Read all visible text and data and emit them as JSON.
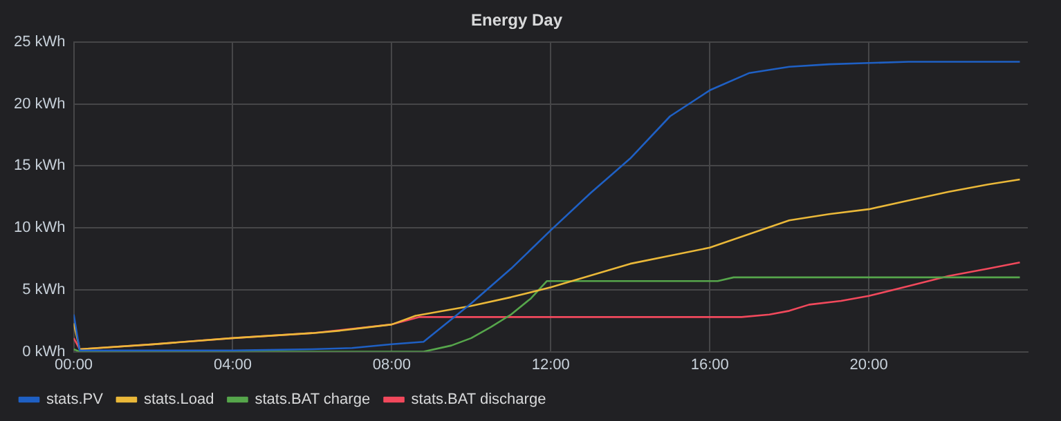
{
  "chart_data": {
    "type": "line",
    "title": "Energy Day",
    "marker": "none",
    "line_style": "solid",
    "grid": true,
    "legend": "bottom left",
    "xlim": [
      0,
      24
    ],
    "xticks": [
      {
        "value": 0,
        "label": "00:00"
      },
      {
        "value": 4,
        "label": "04:00"
      },
      {
        "value": 8,
        "label": "08:00"
      },
      {
        "value": 12,
        "label": "12:00"
      },
      {
        "value": 16,
        "label": "16:00"
      },
      {
        "value": 20,
        "label": "20:00"
      }
    ],
    "ylim": [
      0,
      25
    ],
    "yticks": [
      {
        "value": 0,
        "label": "0 kWh"
      },
      {
        "value": 5,
        "label": "5 kWh"
      },
      {
        "value": 10,
        "label": "10 kWh"
      },
      {
        "value": 15,
        "label": "15 kWh"
      },
      {
        "value": 20,
        "label": "20 kWh"
      },
      {
        "value": 25,
        "label": "25 kWh"
      }
    ],
    "series": [
      {
        "name": "stats.PV",
        "color": "#1f60c4",
        "x": [
          0,
          0.15,
          2,
          4,
          6,
          7,
          8,
          8.8,
          10,
          11,
          12,
          13,
          14,
          15,
          16,
          17,
          18,
          19,
          20,
          21,
          22,
          23,
          23.8
        ],
        "values": [
          3.0,
          0.1,
          0.1,
          0.1,
          0.2,
          0.3,
          0.6,
          0.8,
          3.9,
          6.7,
          9.8,
          12.8,
          15.6,
          19.0,
          21.1,
          22.5,
          23.0,
          23.2,
          23.3,
          23.4,
          23.4,
          23.4,
          23.4
        ]
      },
      {
        "name": "stats.Load",
        "color": "#eab839",
        "x": [
          0,
          0.15,
          2,
          4,
          6,
          6.7,
          8,
          8.6,
          10,
          11,
          12,
          14,
          16,
          17,
          18,
          19,
          20,
          21,
          22,
          23,
          23.8
        ],
        "values": [
          2.3,
          0.2,
          0.6,
          1.1,
          1.5,
          1.7,
          2.2,
          2.9,
          3.7,
          4.4,
          5.2,
          7.1,
          8.4,
          9.5,
          10.6,
          11.1,
          11.5,
          12.2,
          12.9,
          13.5,
          13.9
        ]
      },
      {
        "name": "stats.BAT charge",
        "color": "#56a64b",
        "x": [
          0,
          0.15,
          4,
          8,
          8.8,
          9.5,
          10,
          10.5,
          11,
          11.5,
          11.9,
          16.2,
          16.6,
          23.8
        ],
        "values": [
          0.2,
          0,
          0,
          0,
          0,
          0.5,
          1.1,
          2.0,
          3.0,
          4.3,
          5.7,
          5.7,
          6.0,
          6.0
        ]
      },
      {
        "name": "stats.BAT discharge",
        "color": "#f2495c",
        "x": [
          0,
          0.15,
          2,
          4,
          6,
          8,
          8.7,
          12,
          16.8,
          17.5,
          18,
          18.5,
          19.3,
          20,
          21,
          22,
          23,
          23.8
        ],
        "values": [
          1.1,
          0.2,
          0.6,
          1.1,
          1.5,
          2.2,
          2.8,
          2.8,
          2.8,
          3.0,
          3.3,
          3.8,
          4.1,
          4.5,
          5.3,
          6.1,
          6.7,
          7.2
        ]
      }
    ]
  }
}
